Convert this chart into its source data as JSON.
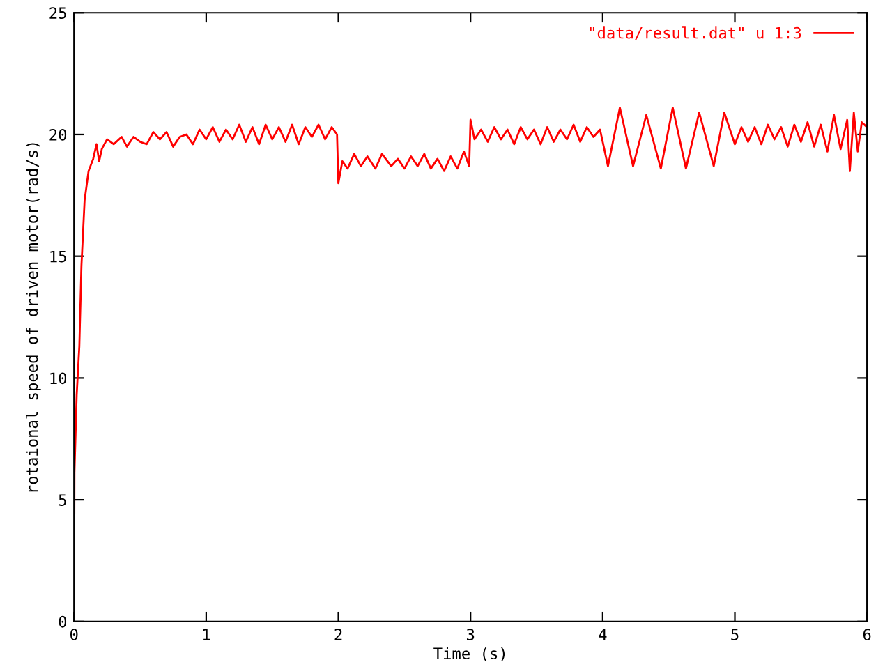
{
  "chart_data": {
    "type": "line",
    "xlabel": "Time (s)",
    "ylabel": "rotaional speed of driven motor(rad/s)",
    "xlim": [
      0,
      6
    ],
    "ylim": [
      0,
      25
    ],
    "xticks": [
      0,
      1,
      2,
      3,
      4,
      5,
      6
    ],
    "yticks": [
      0,
      5,
      10,
      15,
      20,
      25
    ],
    "grid": false,
    "legend": "top right",
    "marker": "none",
    "line_style": "solid",
    "series": [
      {
        "name": "\"data/result.dat\" u 1:3",
        "color": "#ff0000",
        "x": [
          0,
          0.003,
          0.02,
          0.04,
          0.056,
          0.08,
          0.11,
          0.145,
          0.17,
          0.19,
          0.21,
          0.25,
          0.3,
          0.36,
          0.4,
          0.45,
          0.5,
          0.55,
          0.6,
          0.65,
          0.7,
          0.75,
          0.8,
          0.85,
          0.9,
          0.95,
          1.0,
          1.05,
          1.1,
          1.15,
          1.2,
          1.25,
          1.3,
          1.35,
          1.4,
          1.45,
          1.5,
          1.55,
          1.6,
          1.65,
          1.7,
          1.75,
          1.8,
          1.85,
          1.9,
          1.95,
          1.99,
          2.0,
          2.03,
          2.07,
          2.12,
          2.17,
          2.22,
          2.28,
          2.33,
          2.4,
          2.45,
          2.5,
          2.55,
          2.6,
          2.65,
          2.7,
          2.75,
          2.8,
          2.85,
          2.9,
          2.95,
          2.99,
          3.0,
          3.03,
          3.08,
          3.13,
          3.18,
          3.23,
          3.28,
          3.33,
          3.38,
          3.43,
          3.48,
          3.53,
          3.58,
          3.63,
          3.68,
          3.73,
          3.78,
          3.83,
          3.88,
          3.93,
          3.98,
          4.04,
          4.13,
          4.23,
          4.33,
          4.44,
          4.53,
          4.63,
          4.73,
          4.84,
          4.92,
          5.0,
          5.05,
          5.1,
          5.15,
          5.2,
          5.25,
          5.3,
          5.35,
          5.4,
          5.45,
          5.5,
          5.55,
          5.6,
          5.65,
          5.7,
          5.75,
          5.8,
          5.85,
          5.87,
          5.9,
          5.93,
          5.96,
          6.0
        ],
        "values": [
          0,
          6.1,
          9.3,
          11.3,
          14.6,
          17.3,
          18.5,
          19.0,
          19.6,
          18.9,
          19.4,
          19.8,
          19.6,
          19.9,
          19.5,
          19.9,
          19.7,
          19.6,
          20.1,
          19.8,
          20.1,
          19.5,
          19.9,
          20.0,
          19.6,
          20.2,
          19.8,
          20.3,
          19.7,
          20.2,
          19.8,
          20.4,
          19.7,
          20.3,
          19.6,
          20.4,
          19.8,
          20.3,
          19.7,
          20.4,
          19.6,
          20.3,
          19.9,
          20.4,
          19.8,
          20.3,
          20.0,
          18.0,
          18.9,
          18.6,
          19.2,
          18.7,
          19.1,
          18.6,
          19.2,
          18.7,
          19.0,
          18.6,
          19.1,
          18.7,
          19.2,
          18.6,
          19.0,
          18.5,
          19.1,
          18.6,
          19.3,
          18.7,
          20.6,
          19.8,
          20.2,
          19.7,
          20.3,
          19.8,
          20.2,
          19.6,
          20.3,
          19.8,
          20.2,
          19.6,
          20.3,
          19.7,
          20.2,
          19.8,
          20.4,
          19.7,
          20.3,
          19.9,
          20.2,
          18.7,
          21.1,
          18.7,
          20.8,
          18.6,
          21.1,
          18.6,
          20.9,
          18.7,
          20.9,
          19.6,
          20.3,
          19.7,
          20.3,
          19.6,
          20.4,
          19.8,
          20.3,
          19.5,
          20.4,
          19.7,
          20.5,
          19.5,
          20.4,
          19.3,
          20.8,
          19.4,
          20.6,
          18.5,
          20.9,
          19.3,
          20.5,
          20.3
        ]
      }
    ]
  }
}
